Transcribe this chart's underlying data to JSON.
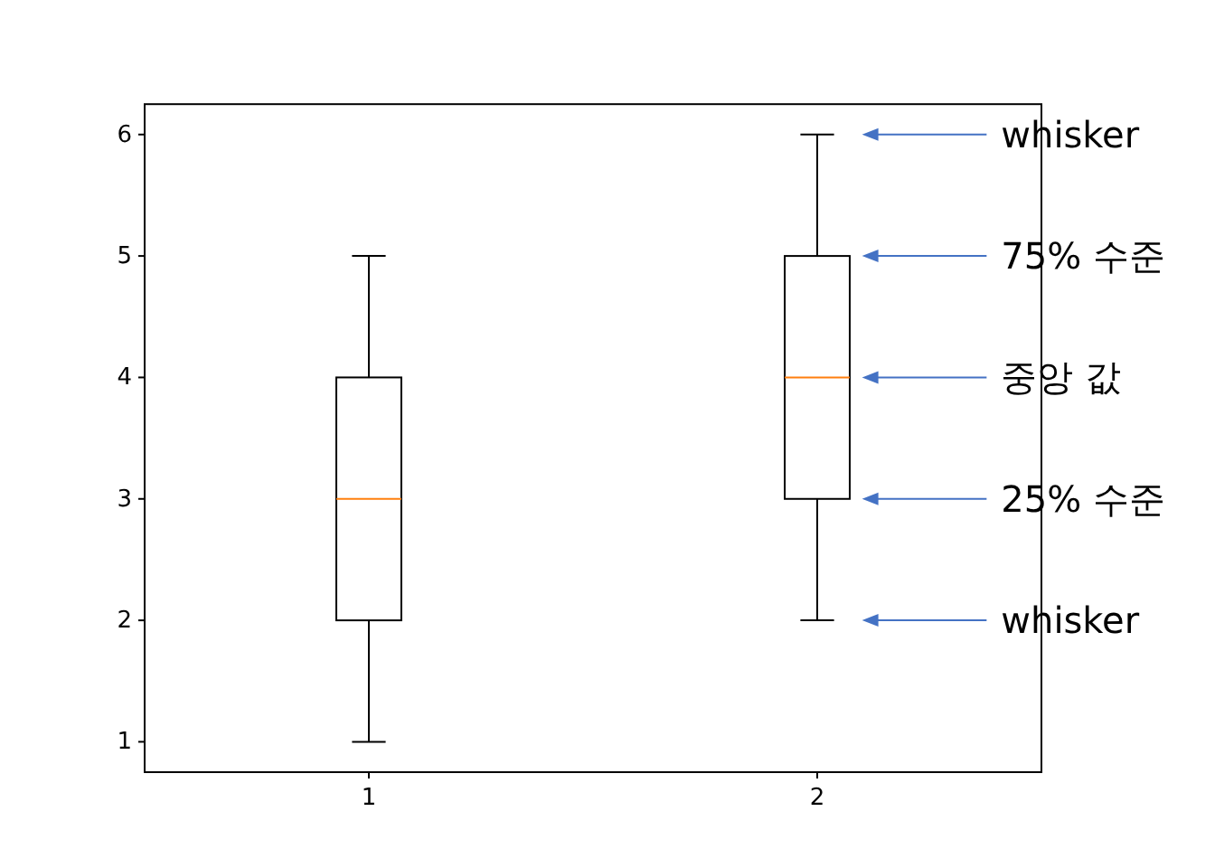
{
  "chart_data": {
    "type": "box",
    "categories": [
      "1",
      "2"
    ],
    "boxes": [
      {
        "low": 1,
        "q1": 2,
        "median": 3,
        "q3": 4,
        "high": 5
      },
      {
        "low": 2,
        "q1": 3,
        "median": 4,
        "q3": 5,
        "high": 6
      }
    ],
    "ylim": [
      0.75,
      6.25
    ],
    "yticks": [
      1,
      2,
      3,
      4,
      5,
      6
    ],
    "annotations": [
      "whisker",
      "75% 수준",
      "중앙 값",
      "25% 수준",
      "whisker"
    ]
  }
}
